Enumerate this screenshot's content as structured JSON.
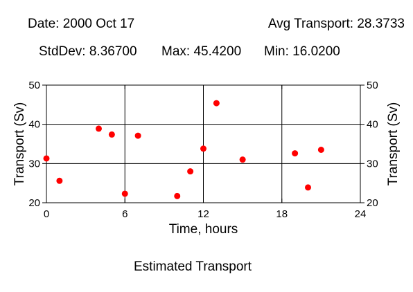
{
  "header": {
    "date": "Date: 2000 Oct 17",
    "avg": "Avg Transport: 28.3733",
    "stddev": "StdDev: 8.36700",
    "max": "Max: 45.4200",
    "min": "Min: 16.0200"
  },
  "caption": "Estimated Transport",
  "colors": {
    "point": "#ff0000",
    "axis": "#000000",
    "background": "#ffffff"
  },
  "chart_data": {
    "type": "scatter",
    "title": "Estimated Transport",
    "xlabel": "Time, hours",
    "ylabel": "Transport (Sv)",
    "ylabel_right": "Transport (Sv)",
    "xlim": [
      0,
      24
    ],
    "ylim": [
      20,
      50
    ],
    "xticks": [
      0,
      6,
      12,
      18,
      24
    ],
    "xtick_labels": [
      "0",
      "6",
      "12",
      "18",
      "24"
    ],
    "yticks": [
      20,
      30,
      40,
      50
    ],
    "ytick_labels": [
      "20",
      "30",
      "40",
      "50"
    ],
    "grid": true,
    "legend": false,
    "series": [
      {
        "x": [
          0,
          1,
          4,
          5,
          6,
          7,
          10,
          11,
          12,
          13,
          15,
          19,
          20,
          21
        ],
        "y": [
          31.3,
          25.6,
          38.9,
          37.4,
          22.3,
          37.1,
          21.7,
          28.0,
          33.8,
          45.4,
          31.0,
          32.6,
          23.9,
          33.5
        ]
      }
    ]
  }
}
